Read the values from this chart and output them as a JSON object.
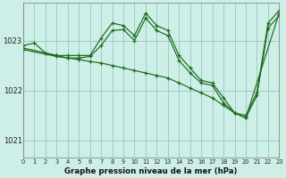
{
  "title": "Graphe pression niveau de la mer (hPa)",
  "bg_color": "#ceeee8",
  "grid_color": "#9dccc4",
  "line_color": "#1a6b1a",
  "xlim": [
    0,
    23
  ],
  "ylim": [
    1020.65,
    1023.75
  ],
  "yticks": [
    1021,
    1022,
    1023
  ],
  "xticks": [
    0,
    1,
    2,
    3,
    4,
    5,
    6,
    7,
    8,
    9,
    10,
    11,
    12,
    13,
    14,
    15,
    16,
    17,
    18,
    19,
    20,
    21,
    22,
    23
  ],
  "series": [
    {
      "x": [
        0,
        1,
        2,
        3,
        4,
        5,
        6,
        7,
        8,
        9,
        10,
        11,
        12,
        13,
        14,
        15,
        16,
        17,
        18,
        19,
        20,
        21,
        22,
        23
      ],
      "y": [
        1022.9,
        1022.95,
        1022.75,
        1022.7,
        1022.7,
        1022.7,
        1022.7,
        1023.05,
        1023.35,
        1023.3,
        1023.1,
        1023.55,
        1023.3,
        1023.2,
        1022.7,
        1022.45,
        1022.2,
        1022.15,
        1021.85,
        1021.55,
        1021.5,
        1021.95,
        1023.35,
        1023.6
      ]
    },
    {
      "x": [
        0,
        3,
        4,
        5,
        6,
        7,
        8,
        9,
        10,
        11,
        12,
        13,
        14,
        15,
        16,
        17,
        18,
        19,
        20,
        23
      ],
      "y": [
        1022.85,
        1022.7,
        1022.65,
        1022.62,
        1022.58,
        1022.55,
        1022.5,
        1022.45,
        1022.4,
        1022.35,
        1022.3,
        1022.25,
        1022.15,
        1022.05,
        1021.95,
        1021.85,
        1021.7,
        1021.55,
        1021.45,
        1023.55
      ]
    },
    {
      "x": [
        0,
        3,
        4,
        5,
        6,
        7,
        8,
        9,
        10,
        11,
        12,
        13,
        14,
        15,
        16,
        17,
        18,
        19,
        20,
        21,
        22,
        23
      ],
      "y": [
        1022.82,
        1022.68,
        1022.65,
        1022.65,
        1022.68,
        1022.9,
        1023.2,
        1023.22,
        1023.0,
        1023.45,
        1023.2,
        1023.1,
        1022.6,
        1022.35,
        1022.15,
        1022.1,
        1021.75,
        1021.55,
        1021.45,
        1021.9,
        1023.25,
        1023.5
      ]
    }
  ]
}
